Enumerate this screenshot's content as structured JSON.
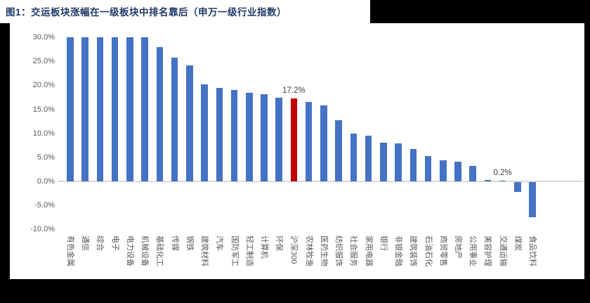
{
  "title": "图1：交运板块涨幅在一级板块中排名靠后（申万一级行业指数）",
  "colors": {
    "page_background": "#000000",
    "panel_background": "#ffffff",
    "title_text": "#1f3a68",
    "bar_default": "#4472c4",
    "bar_highlight": "#c00000",
    "axis_text": "#595959",
    "data_label_text": "#404040",
    "zero_line": "#d9d9d9"
  },
  "chart_data": {
    "type": "bar",
    "title": "图1：交运板块涨幅在一级板块中排名靠后（申万一级行业指数）",
    "xlabel": "",
    "ylabel": "",
    "ylim": [
      -10,
      30
    ],
    "grid": false,
    "legend": false,
    "ytick_labels": [
      "30.0%",
      "25.0%",
      "20.0%",
      "15.0%",
      "10.0%",
      "5.0%",
      "0.0%",
      "-5.0%",
      "-10.0%"
    ],
    "ytick_values": [
      30,
      25,
      20,
      15,
      10,
      5,
      0,
      -5,
      -10
    ],
    "categories": [
      "有色金属",
      "通信",
      "综合",
      "电子",
      "电力设备",
      "机械设备",
      "基础化工",
      "传媒",
      "钢铁",
      "建筑材料",
      "汽车",
      "国防军工",
      "轻工制造",
      "计算机",
      "环保",
      "沪深300",
      "农林牧渔",
      "医药生物",
      "纺织服饰",
      "社会服务",
      "家用电器",
      "银行",
      "非银金融",
      "建筑装饰",
      "石油石化",
      "商贸零售",
      "房地产",
      "公用事业",
      "美容护理",
      "交通运输",
      "煤炭",
      "食品饮料"
    ],
    "values": [
      30.0,
      30.0,
      30.0,
      30.0,
      30.0,
      30.0,
      27.9,
      25.7,
      24.1,
      20.2,
      19.5,
      19.0,
      18.4,
      18.1,
      17.4,
      17.2,
      16.6,
      15.8,
      12.7,
      9.9,
      9.5,
      8.0,
      7.9,
      6.8,
      5.3,
      4.4,
      4.1,
      3.2,
      0.3,
      0.2,
      -2.1,
      -7.3
    ],
    "highlight_category": "沪深300",
    "data_labels": [
      {
        "category": "沪深300",
        "text": "17.2%"
      },
      {
        "category": "交通运输",
        "text": "0.2%"
      }
    ]
  }
}
